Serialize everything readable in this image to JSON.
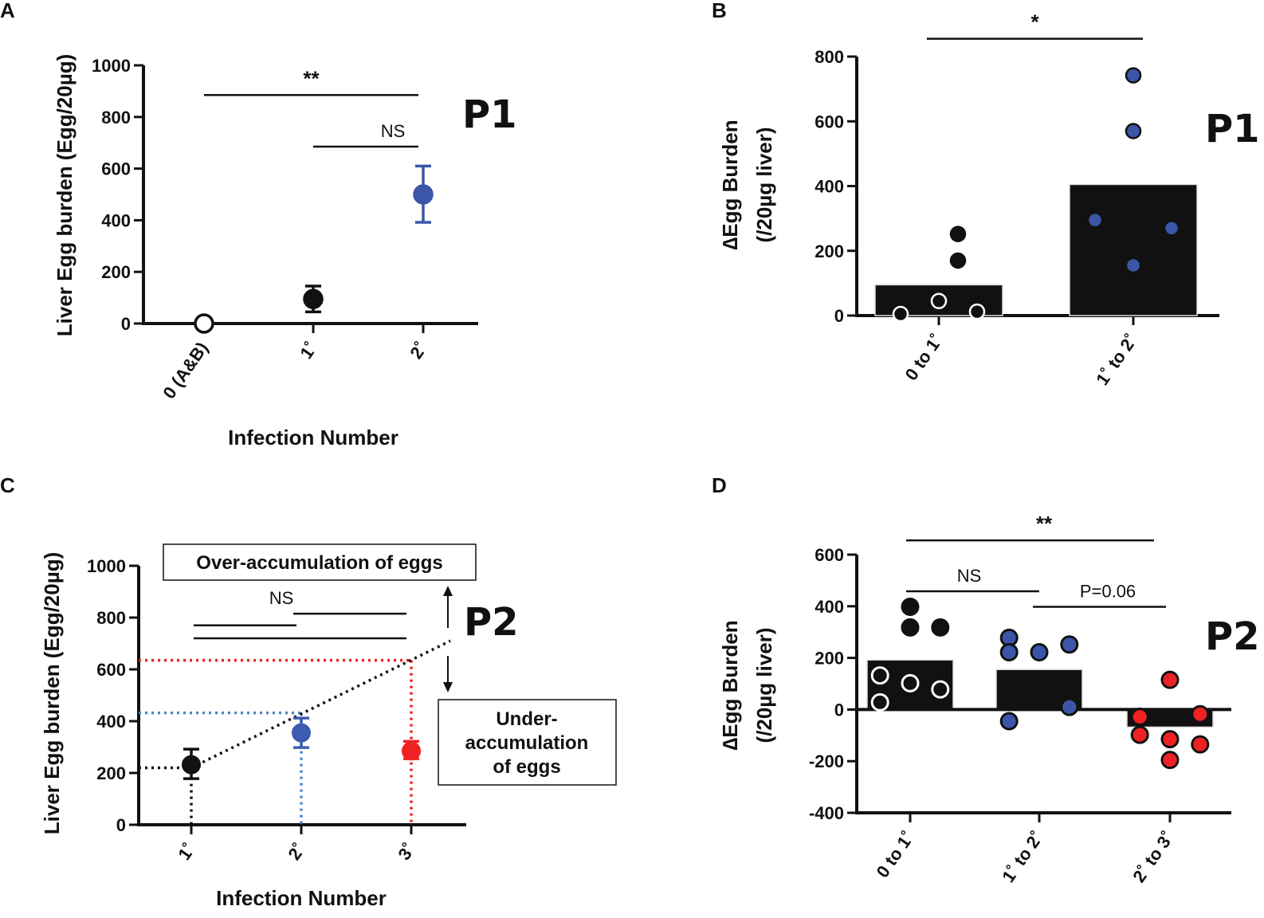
{
  "chart_data": [
    {
      "id": "A",
      "type": "scatter",
      "panel_label": "A",
      "tag": "P1",
      "ylabel": "Liver Egg burden (Egg/20µg)",
      "xlabel": "Infection Number",
      "ylim": [
        0,
        1000
      ],
      "yticks": [
        0,
        200,
        400,
        600,
        800,
        1000
      ],
      "categories": [
        "0 (A&B)",
        "1˚",
        "2˚"
      ],
      "points": [
        {
          "category": "0 (A&B)",
          "mean": 0,
          "err_low": 0,
          "err_high": 0,
          "color": "#ffffff",
          "stroke": "#111111"
        },
        {
          "category": "1˚",
          "mean": 95,
          "err_low": 45,
          "err_high": 145,
          "color": "#111111",
          "stroke": "#111111"
        },
        {
          "category": "2˚",
          "mean": 500,
          "err_low": 392,
          "err_high": 610,
          "color": "#3b56a8",
          "stroke": "#3b56a8"
        }
      ],
      "comparisons": [
        {
          "label": "**",
          "from": "0 (A&B)",
          "to": "2˚",
          "y": 885
        },
        {
          "label": "NS",
          "from": "1˚",
          "to": "2˚",
          "y": 685
        }
      ]
    },
    {
      "id": "B",
      "type": "bar",
      "panel_label": "B",
      "tag": "P1",
      "ylabel_line1": "∆Egg Burden",
      "ylabel_line2": "(/20µg liver)",
      "ylim": [
        0,
        800
      ],
      "yticks": [
        0,
        200,
        400,
        600,
        800
      ],
      "categories": [
        "0 to 1˚",
        "1˚ to 2˚"
      ],
      "values": [
        95,
        405
      ],
      "bar_colors": [
        "#111111",
        "#111111"
      ],
      "points": [
        {
          "category": 0,
          "y": 252,
          "fill": "#111111",
          "stroke": "#111111",
          "dx": 0.15
        },
        {
          "category": 0,
          "y": 170,
          "fill": "#111111",
          "stroke": "#111111",
          "dx": 0.15
        },
        {
          "category": 0,
          "y": 45,
          "fill": "#111111",
          "stroke": "#ffffff",
          "dx": 0
        },
        {
          "category": 0,
          "y": 12,
          "fill": "#111111",
          "stroke": "#ffffff",
          "dx": 0.3
        },
        {
          "category": 0,
          "y": 5,
          "fill": "#111111",
          "stroke": "#ffffff",
          "dx": -0.3
        },
        {
          "category": 1,
          "y": 742,
          "fill": "#3b56a8",
          "stroke": "#111111",
          "dx": 0
        },
        {
          "category": 1,
          "y": 570,
          "fill": "#3b56a8",
          "stroke": "#111111",
          "dx": 0
        },
        {
          "category": 1,
          "y": 295,
          "fill": "#3b56a8",
          "stroke": "#111111",
          "dx": -0.3
        },
        {
          "category": 1,
          "y": 270,
          "fill": "#3b56a8",
          "stroke": "#111111",
          "dx": 0.3
        },
        {
          "category": 1,
          "y": 155,
          "fill": "#3b56a8",
          "stroke": "#111111",
          "dx": 0
        }
      ],
      "comparisons": [
        {
          "label": "*",
          "from": 0,
          "to": 1,
          "y": 855
        }
      ]
    },
    {
      "id": "C",
      "type": "scatter",
      "panel_label": "C",
      "tag": "P2",
      "ylabel": "Liver Egg burden (Egg/20µg)",
      "xlabel": "Infection Number",
      "ylim": [
        0,
        1000
      ],
      "yticks": [
        0,
        200,
        400,
        600,
        800,
        1000
      ],
      "categories": [
        "1˚",
        "2˚",
        "3˚"
      ],
      "points": [
        {
          "category": "1˚",
          "mean": 232,
          "err_low": 178,
          "err_high": 292,
          "color": "#111111"
        },
        {
          "category": "2˚",
          "mean": 355,
          "err_low": 298,
          "err_high": 412,
          "color": "#3b5cb0"
        },
        {
          "category": "3˚",
          "mean": 285,
          "err_low": 255,
          "err_high": 322,
          "color": "#ee2222"
        }
      ],
      "reference_lines": [
        {
          "color": "#ee2222",
          "y": 635,
          "to_category": "3˚"
        },
        {
          "color": "#4a86c8",
          "y": 432,
          "to_category": "2˚"
        }
      ],
      "trend_line": {
        "from_y": 220,
        "to_y": 710
      },
      "comparisons": [
        {
          "label": "NS",
          "from": "2˚",
          "to": "3˚",
          "y": 815
        },
        {
          "label": "",
          "from": "1˚",
          "to": "2˚",
          "y": 770
        },
        {
          "label": "",
          "from": "1˚",
          "to": "3˚",
          "y": 720
        }
      ],
      "annotations": {
        "over": "Over-accumulation of eggs",
        "under_line1": "Under-",
        "under_line2": "accumulation",
        "under_line3": "of eggs"
      }
    },
    {
      "id": "D",
      "type": "bar",
      "panel_label": "D",
      "tag": "P2",
      "ylabel_line1": "∆Egg Burden",
      "ylabel_line2": "(/20µg liver)",
      "ylim": [
        -400,
        600
      ],
      "yticks": [
        -400,
        -200,
        0,
        200,
        400,
        600
      ],
      "categories": [
        "0 to 1˚",
        "1˚ to 2˚",
        "2˚ to 3˚"
      ],
      "values": [
        192,
        155,
        -68
      ],
      "points": [
        {
          "category": 0,
          "y": 398,
          "fill": "#111111",
          "stroke": "#111111",
          "dx": 0
        },
        {
          "category": 0,
          "y": 318,
          "fill": "#111111",
          "stroke": "#111111",
          "dx": 0
        },
        {
          "category": 0,
          "y": 318,
          "fill": "#111111",
          "stroke": "#111111",
          "dx": 0.35
        },
        {
          "category": 0,
          "y": 132,
          "fill": "#111111",
          "stroke": "#ffffff",
          "dx": -0.35
        },
        {
          "category": 0,
          "y": 102,
          "fill": "#111111",
          "stroke": "#ffffff",
          "dx": 0
        },
        {
          "category": 0,
          "y": 78,
          "fill": "#111111",
          "stroke": "#ffffff",
          "dx": 0.35
        },
        {
          "category": 0,
          "y": 28,
          "fill": "#111111",
          "stroke": "#ffffff",
          "dx": -0.35
        },
        {
          "category": 1,
          "y": 278,
          "fill": "#3b56a8",
          "stroke": "#111111",
          "dx": -0.35
        },
        {
          "category": 1,
          "y": 222,
          "fill": "#3b56a8",
          "stroke": "#111111",
          "dx": -0.35
        },
        {
          "category": 1,
          "y": 222,
          "fill": "#3b56a8",
          "stroke": "#111111",
          "dx": 0
        },
        {
          "category": 1,
          "y": 252,
          "fill": "#3b56a8",
          "stroke": "#111111",
          "dx": 0.35
        },
        {
          "category": 1,
          "y": 10,
          "fill": "#3b56a8",
          "stroke": "#111111",
          "dx": 0.35
        },
        {
          "category": 1,
          "y": -45,
          "fill": "#3b56a8",
          "stroke": "#111111",
          "dx": -0.35
        },
        {
          "category": 2,
          "y": 115,
          "fill": "#ee2222",
          "stroke": "#111111",
          "dx": 0
        },
        {
          "category": 2,
          "y": -28,
          "fill": "#ee2222",
          "stroke": "#111111",
          "dx": -0.35
        },
        {
          "category": 2,
          "y": -18,
          "fill": "#ee2222",
          "stroke": "#111111",
          "dx": 0.35
        },
        {
          "category": 2,
          "y": -98,
          "fill": "#ee2222",
          "stroke": "#111111",
          "dx": -0.35
        },
        {
          "category": 2,
          "y": -115,
          "fill": "#ee2222",
          "stroke": "#111111",
          "dx": 0
        },
        {
          "category": 2,
          "y": -135,
          "fill": "#ee2222",
          "stroke": "#111111",
          "dx": 0.35
        },
        {
          "category": 2,
          "y": -195,
          "fill": "#ee2222",
          "stroke": "#111111",
          "dx": 0
        }
      ],
      "comparisons": [
        {
          "label": "**",
          "from": 0,
          "to": 2,
          "y": 655
        },
        {
          "label": "NS",
          "from": 0,
          "to": 1,
          "y": 458
        },
        {
          "label": "P=0.06",
          "from": 1,
          "to": 2,
          "y": 398
        }
      ]
    }
  ]
}
